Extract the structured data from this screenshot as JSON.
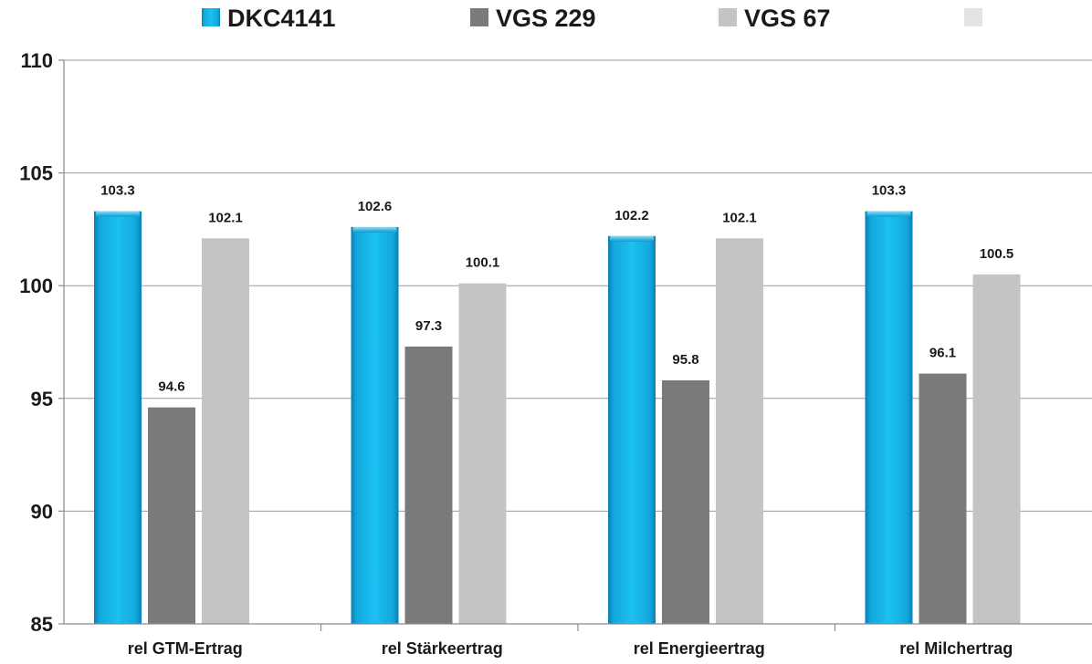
{
  "chart_data": {
    "type": "bar",
    "categories": [
      "rel GTM-Ertrag",
      "rel Stärkeertrag",
      "rel Energieertrag",
      "rel Milchertrag"
    ],
    "series": [
      {
        "name": "DKC4141",
        "values": [
          103.3,
          102.6,
          102.2,
          103.3
        ],
        "color": "#17b4e8"
      },
      {
        "name": "VGS 229",
        "values": [
          94.6,
          97.3,
          95.8,
          96.1
        ],
        "color": "#7a7a7a"
      },
      {
        "name": "VGS 67",
        "values": [
          102.1,
          100.1,
          102.1,
          100.5
        ],
        "color": "#c4c4c4"
      }
    ],
    "legend_extra_swatch_color": "#e3e3e3",
    "ylim": [
      85,
      110
    ],
    "yticks": [
      "85",
      "90",
      "95",
      "100",
      "105",
      "110"
    ],
    "title": "",
    "xlabel": "",
    "ylabel": "",
    "grid": true,
    "legend_position": "top"
  }
}
